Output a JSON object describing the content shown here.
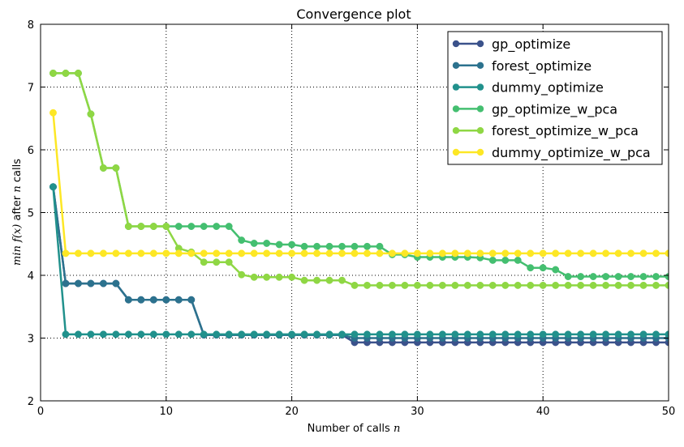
{
  "chart_data": {
    "type": "line",
    "title": "Convergence plot",
    "xlabel": {
      "prefix": "Number of calls ",
      "math": "n"
    },
    "ylabel": {
      "math_fn": "min f(x)",
      "middle": " after ",
      "math_n": "n",
      "suffix": " calls"
    },
    "xlim": [
      0,
      50
    ],
    "ylim": [
      2,
      8
    ],
    "xticks": [
      0,
      10,
      20,
      30,
      40,
      50
    ],
    "yticks": [
      2,
      3,
      4,
      5,
      6,
      7,
      8
    ],
    "grid": true,
    "legend_position": "top-right",
    "x": [
      1,
      2,
      3,
      4,
      5,
      6,
      7,
      8,
      9,
      10,
      11,
      12,
      13,
      14,
      15,
      16,
      17,
      18,
      19,
      20,
      21,
      22,
      23,
      24,
      25,
      26,
      27,
      28,
      29,
      30,
      31,
      32,
      33,
      34,
      35,
      36,
      37,
      38,
      39,
      40,
      41,
      42,
      43,
      44,
      45,
      46,
      47,
      48,
      49,
      50
    ],
    "series": [
      {
        "name": "gp_optimize",
        "color": "#3b528b",
        "values": [
          5.41,
          3.87,
          3.87,
          3.87,
          3.87,
          3.87,
          3.61,
          3.61,
          3.61,
          3.61,
          3.61,
          3.61,
          3.05,
          3.05,
          3.05,
          3.05,
          3.05,
          3.05,
          3.05,
          3.05,
          3.05,
          3.05,
          3.05,
          3.05,
          2.93,
          2.93,
          2.93,
          2.93,
          2.93,
          2.93,
          2.93,
          2.93,
          2.93,
          2.93,
          2.93,
          2.93,
          2.93,
          2.93,
          2.93,
          2.93,
          2.93,
          2.93,
          2.93,
          2.93,
          2.93,
          2.93,
          2.93,
          2.93,
          2.93,
          2.93
        ]
      },
      {
        "name": "forest_optimize",
        "color": "#2c728e",
        "values": [
          5.41,
          3.87,
          3.87,
          3.87,
          3.87,
          3.87,
          3.61,
          3.61,
          3.61,
          3.61,
          3.61,
          3.61,
          3.05,
          3.05,
          3.05,
          3.05,
          3.05,
          3.05,
          3.05,
          3.05,
          3.05,
          3.05,
          3.05,
          3.05,
          3.0,
          3.0,
          3.0,
          3.0,
          3.0,
          3.0,
          3.0,
          3.0,
          3.0,
          3.0,
          3.0,
          3.0,
          3.0,
          3.0,
          3.0,
          3.0,
          3.0,
          3.0,
          3.0,
          3.0,
          3.0,
          3.0,
          3.0,
          3.0,
          3.0,
          3.0
        ]
      },
      {
        "name": "dummy_optimize",
        "color": "#21918c",
        "values": [
          5.41,
          3.06,
          3.06,
          3.06,
          3.06,
          3.06,
          3.06,
          3.06,
          3.06,
          3.06,
          3.06,
          3.06,
          3.06,
          3.06,
          3.06,
          3.06,
          3.06,
          3.06,
          3.06,
          3.06,
          3.06,
          3.06,
          3.06,
          3.06,
          3.06,
          3.06,
          3.06,
          3.06,
          3.06,
          3.06,
          3.06,
          3.06,
          3.06,
          3.06,
          3.06,
          3.06,
          3.06,
          3.06,
          3.06,
          3.06,
          3.06,
          3.06,
          3.06,
          3.06,
          3.06,
          3.06,
          3.06,
          3.06,
          3.06,
          3.06
        ]
      },
      {
        "name": "gp_optimize_w_pca",
        "color": "#44bf70",
        "values": [
          7.22,
          7.22,
          7.22,
          6.57,
          5.71,
          5.71,
          4.78,
          4.78,
          4.78,
          4.78,
          4.78,
          4.78,
          4.78,
          4.78,
          4.78,
          4.56,
          4.51,
          4.51,
          4.49,
          4.49,
          4.46,
          4.46,
          4.46,
          4.46,
          4.46,
          4.46,
          4.46,
          4.33,
          4.33,
          4.29,
          4.29,
          4.29,
          4.29,
          4.29,
          4.28,
          4.24,
          4.24,
          4.24,
          4.12,
          4.12,
          4.09,
          3.98,
          3.98,
          3.98,
          3.98,
          3.98,
          3.98,
          3.98,
          3.98,
          3.98
        ]
      },
      {
        "name": "forest_optimize_w_pca",
        "color": "#8fd744",
        "values": [
          7.22,
          7.22,
          7.22,
          6.57,
          5.71,
          5.71,
          4.78,
          4.78,
          4.78,
          4.78,
          4.43,
          4.37,
          4.21,
          4.21,
          4.21,
          4.01,
          3.97,
          3.97,
          3.97,
          3.97,
          3.92,
          3.92,
          3.92,
          3.92,
          3.84,
          3.84,
          3.84,
          3.84,
          3.84,
          3.84,
          3.84,
          3.84,
          3.84,
          3.84,
          3.84,
          3.84,
          3.84,
          3.84,
          3.84,
          3.84,
          3.84,
          3.84,
          3.84,
          3.84,
          3.84,
          3.84,
          3.84,
          3.84,
          3.84,
          3.84
        ]
      },
      {
        "name": "dummy_optimize_w_pca",
        "color": "#fde725",
        "values": [
          6.59,
          4.35,
          4.35,
          4.35,
          4.35,
          4.35,
          4.35,
          4.35,
          4.35,
          4.35,
          4.35,
          4.35,
          4.35,
          4.35,
          4.35,
          4.35,
          4.35,
          4.35,
          4.35,
          4.35,
          4.35,
          4.35,
          4.35,
          4.35,
          4.35,
          4.35,
          4.35,
          4.35,
          4.35,
          4.35,
          4.35,
          4.35,
          4.35,
          4.35,
          4.35,
          4.35,
          4.35,
          4.35,
          4.35,
          4.35,
          4.35,
          4.35,
          4.35,
          4.35,
          4.35,
          4.35,
          4.35,
          4.35,
          4.35,
          4.35
        ]
      }
    ]
  }
}
